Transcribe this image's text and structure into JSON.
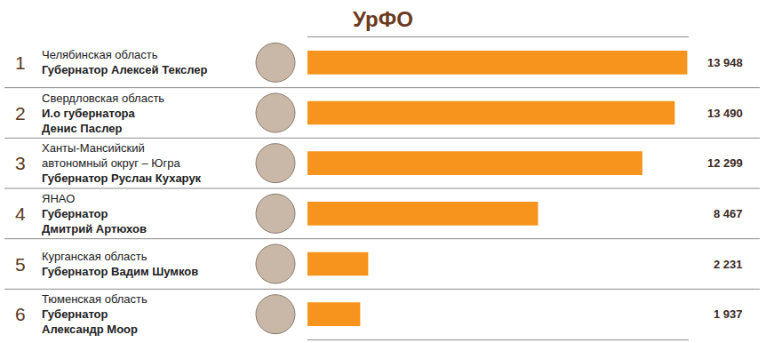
{
  "chart_data": {
    "type": "bar",
    "orientation": "horizontal",
    "title": "УрФО",
    "categories": [
      [
        "Челябинская область",
        "Губернатор Алексей Текслер"
      ],
      [
        "Свердловская область",
        "И.о губернатора\nДенис Паслер"
      ],
      [
        "Ханты-Мансийский\nавтономный округ – Югра",
        "Губернатор Руслан Кухарук"
      ],
      [
        "ЯНАО",
        "Губернатор\nДмитрий Артюхов"
      ],
      [
        "Курганская область",
        "Губернатор Вадим Шумков"
      ],
      [
        "Тюменская область",
        "Губернатор\nАлександр Моор"
      ]
    ],
    "ranks": [
      1,
      2,
      3,
      4,
      5,
      6
    ],
    "values": [
      13948,
      13490,
      12299,
      8467,
      2231,
      1937
    ],
    "value_labels": [
      "13 948",
      "13 490",
      "12 299",
      "8 467",
      "2 231",
      "1 937"
    ],
    "color": "#f7941d",
    "xlim": [
      0,
      14000
    ],
    "xticks": [],
    "tick_labels": false,
    "data_labels": true,
    "grid": false
  }
}
